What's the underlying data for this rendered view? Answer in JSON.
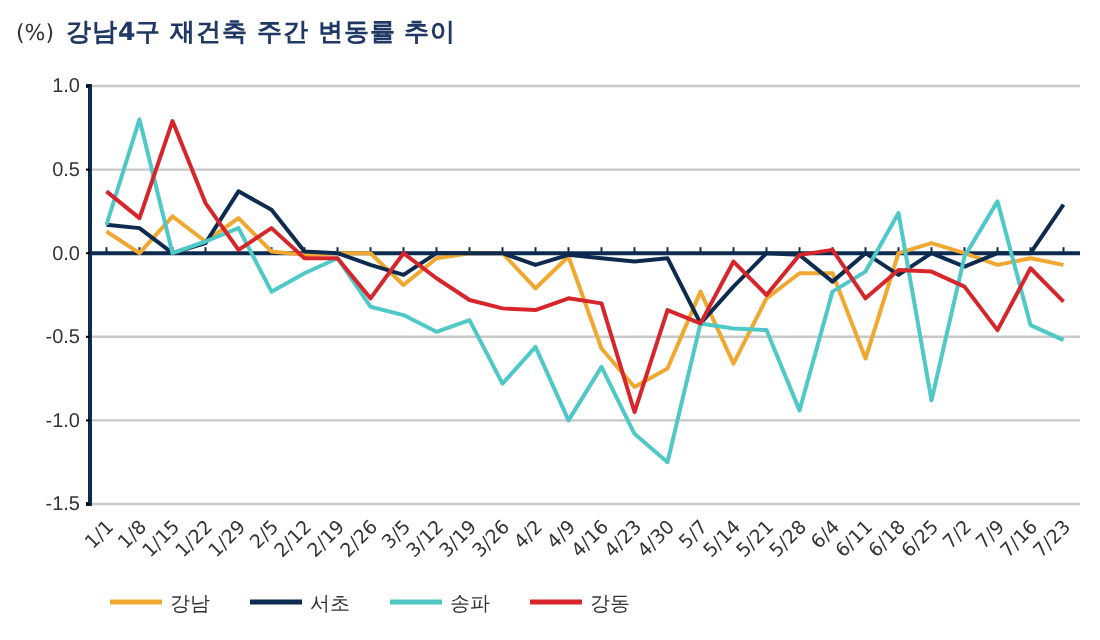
{
  "chart_data": {
    "type": "line",
    "title": "강남4구 재건축 주간 변동률 추이",
    "ylabel": "(%)",
    "categories": [
      "1/1",
      "1/8",
      "1/15",
      "1/22",
      "1/29",
      "2/5",
      "2/12",
      "2/19",
      "2/26",
      "3/5",
      "3/12",
      "3/19",
      "3/26",
      "4/2",
      "4/9",
      "4/16",
      "4/23",
      "4/30",
      "5/7",
      "5/14",
      "5/21",
      "5/28",
      "6/4",
      "6/11",
      "6/18",
      "6/25",
      "7/2",
      "7/9",
      "7/16",
      "7/23"
    ],
    "series": [
      {
        "name": "강남",
        "color": "#f0a830",
        "values": [
          0.13,
          0,
          0.22,
          0.07,
          0.21,
          0.01,
          -0.01,
          0,
          0,
          -0.19,
          -0.03,
          0,
          0,
          -0.21,
          -0.02,
          -0.57,
          -0.8,
          -0.69,
          -0.23,
          -0.66,
          -0.27,
          -0.12,
          -0.12,
          -0.63,
          0,
          0.06,
          0,
          -0.07,
          -0.03,
          -0.07
        ]
      },
      {
        "name": "서초",
        "color": "#0d2b4e",
        "values": [
          0.17,
          0.15,
          0,
          0.06,
          0.37,
          0.26,
          0.01,
          0,
          -0.07,
          -0.13,
          0,
          0,
          0,
          -0.07,
          -0.01,
          -0.03,
          -0.05,
          -0.03,
          -0.42,
          -0.2,
          0,
          -0.01,
          -0.17,
          0,
          -0.13,
          0,
          -0.08,
          0,
          0,
          0.29
        ]
      },
      {
        "name": "송파",
        "color": "#4fc8c8",
        "values": [
          0.17,
          0.8,
          0,
          0.07,
          0.15,
          -0.23,
          -0.12,
          -0.03,
          -0.32,
          -0.37,
          -0.47,
          -0.4,
          -0.78,
          -0.56,
          -1.0,
          -0.68,
          -1.08,
          -1.25,
          -0.42,
          -0.45,
          -0.46,
          -0.94,
          -0.23,
          -0.11,
          0.24,
          -0.88,
          -0.02,
          0.31,
          -0.43,
          -0.52
        ]
      },
      {
        "name": "강동",
        "color": "#d7262b",
        "values": [
          0.37,
          0.21,
          0.79,
          0.3,
          0.02,
          0.15,
          -0.03,
          -0.03,
          -0.27,
          0,
          -0.15,
          -0.28,
          -0.33,
          -0.34,
          -0.27,
          -0.3,
          -0.95,
          -0.34,
          -0.42,
          -0.05,
          -0.25,
          -0.01,
          0.02,
          -0.27,
          -0.1,
          -0.11,
          -0.2,
          -0.46,
          -0.09,
          -0.29
        ]
      }
    ],
    "ylim": [
      -1.5,
      1.0
    ],
    "yticks": [
      {
        "value": -1.5,
        "label": "-1.5"
      },
      {
        "value": -1.0,
        "label": "-1.0"
      },
      {
        "value": -0.5,
        "label": "-0.5"
      },
      {
        "value": 0,
        "label": "0.0"
      },
      {
        "value": 0.5,
        "label": "0.5"
      },
      {
        "value": 1.0,
        "label": "1.0"
      }
    ],
    "grid": "y",
    "legend": "bottom",
    "marker": "none",
    "line_style": "solid"
  }
}
